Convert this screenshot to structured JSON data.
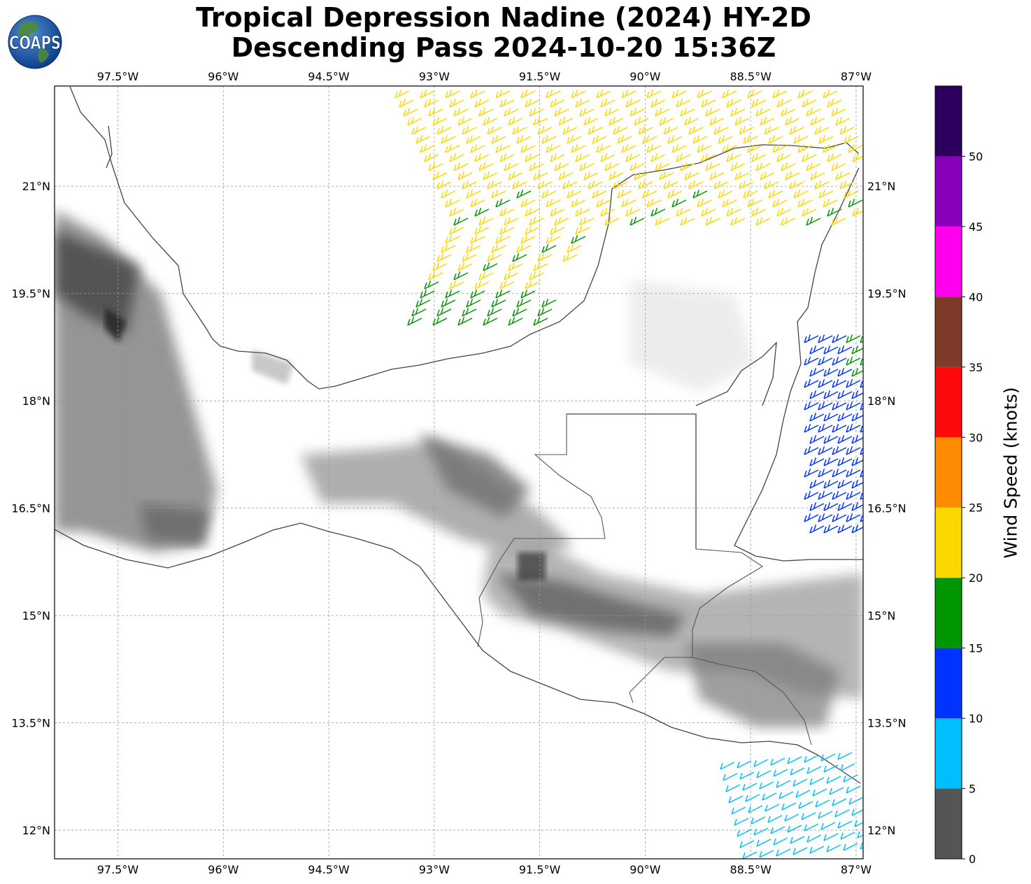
{
  "title": {
    "line1": "Tropical Depression Nadine (2024) HY-2D",
    "line2": "Descending Pass 2024-10-20 15:36Z"
  },
  "logo": {
    "text": "COAPS",
    "icon": "globe-icon"
  },
  "map": {
    "projection": "plate-carree",
    "lon_range": [
      -98.4,
      -86.9
    ],
    "lat_range": [
      11.6,
      22.4
    ],
    "lon_ticks": [
      "97.5°W",
      "96°W",
      "94.5°W",
      "93°W",
      "91.5°W",
      "90°W",
      "88.5°W",
      "87°W"
    ],
    "lon_tick_values": [
      -97.5,
      -96,
      -94.5,
      -93,
      -91.5,
      -90,
      -88.5,
      -87
    ],
    "lat_ticks": [
      "21°N",
      "19.5°N",
      "18°N",
      "16.5°N",
      "15°N",
      "13.5°N",
      "12°N"
    ],
    "lat_tick_values": [
      21,
      19.5,
      18,
      16.5,
      15,
      13.5,
      12
    ],
    "grid": true,
    "background": "grayscale terrain elevation",
    "coastline_color": "#444444"
  },
  "colorbar": {
    "label": "Wind Speed (knots)",
    "boundaries": [
      0,
      5,
      10,
      15,
      20,
      25,
      30,
      35,
      40,
      45,
      50,
      55
    ],
    "tick_labels": [
      "0",
      "5",
      "10",
      "15",
      "20",
      "25",
      "30",
      "35",
      "40",
      "45",
      "50"
    ],
    "colors": [
      "#555555",
      "#00bfff",
      "#0033ff",
      "#009600",
      "#ffd700",
      "#ff8c00",
      "#ff0a0a",
      "#7f3a2a",
      "#ff00ee",
      "#8800bb",
      "#2d0060"
    ]
  },
  "wind_swaths": [
    {
      "region": "bay-of-campeche",
      "speed_range_kt": [
        15,
        25
      ],
      "dominant_color": "#ffd700",
      "direction": "from northeast"
    },
    {
      "region": "gulf-of-honduras",
      "speed_range_kt": [
        10,
        20
      ],
      "dominant_color": "#0033ff",
      "direction": "from east"
    },
    {
      "region": "gulf-of-fonseca-pacific",
      "speed_range_kt": [
        5,
        15
      ],
      "dominant_color": "#00bfff",
      "direction": "from northeast"
    }
  ]
}
